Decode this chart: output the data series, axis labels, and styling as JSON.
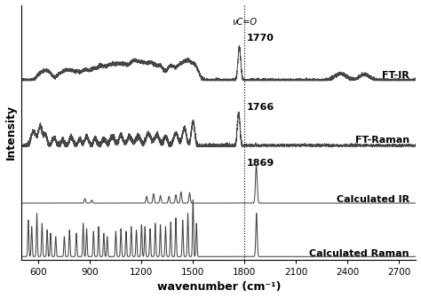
{
  "xlabel": "wavenumber (cm⁻¹)",
  "ylabel": "Intensity",
  "xlim": [
    500,
    2800
  ],
  "xticks": [
    600,
    900,
    1200,
    1500,
    1800,
    2100,
    2400,
    2700
  ],
  "background_color": "#ffffff",
  "line_color": "#444444",
  "dashed_line_x": 1800,
  "annotation_co": "νC=O",
  "annotation_1770": "1770",
  "annotation_1766": "1766",
  "annotation_1869": "1869",
  "labels": [
    "FT-IR",
    "FT-Raman",
    "Calculated IR",
    "Calculated Raman"
  ],
  "offsets": [
    2.8,
    1.75,
    0.85,
    0.0
  ],
  "ftir_scale": 0.55,
  "ftraman_scale": 0.55,
  "calcir_scale": 0.6,
  "calcraman_scale": 0.9
}
